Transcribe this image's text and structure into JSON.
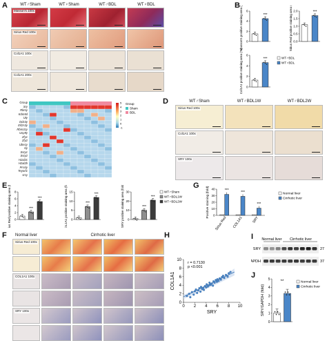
{
  "panels": {
    "A": {
      "letter": "A",
      "columns": [
        "WT♂Sham",
        "WT♀Sham",
        "WT♂BDL",
        "WT♀BDL"
      ],
      "rows": [
        "Masson's 100x",
        "Sirius Red 100x",
        "Col1A1 100x",
        "Col1A1 200x"
      ],
      "colors": {
        "masson": "#c8303a",
        "sirius": "#eec9b3",
        "col": "#efe6dc"
      }
    },
    "B": {
      "letter": "B",
      "legend": [
        "WT♂BDL",
        "WT♀BDL"
      ],
      "sig": "***",
      "plots": [
        {
          "ylabel": "Masson's positive staining area (%)",
          "yticks": [
            "0",
            "2",
            "4",
            "6"
          ],
          "ylim": [
            0,
            6
          ],
          "values": [
            1.5,
            4.5
          ]
        },
        {
          "ylabel": "Sirius Red positive staining area (%)",
          "yticks": [
            "0.0",
            "0.5",
            "1.0",
            "1.5",
            "2.0"
          ],
          "ylim": [
            0,
            2
          ],
          "values": [
            1.1,
            1.7
          ]
        },
        {
          "ylabel": "Col1A1 positive staining area (%)",
          "yticks": [
            "0",
            "2",
            "4",
            "6"
          ],
          "ylim": [
            0,
            6
          ],
          "values": [
            1.3,
            4.6
          ]
        }
      ]
    },
    "C": {
      "letter": "C",
      "group_label": "Group",
      "genes": [
        "Group",
        "Sry",
        "Rbmy",
        "Kdm5d",
        "Uty",
        "Ddx3y",
        "Eif2s3y",
        "Rbm31y",
        "Usp9y",
        "Zfy1",
        "Zfy2",
        "Ube1y",
        "sly",
        "Ssty1",
        "Ssty2",
        "H2al2c",
        "H2al2b",
        "Prssly",
        "Teyorf1",
        "srsy"
      ],
      "legend_title": "Group",
      "legend": [
        "Sham",
        "BDL"
      ],
      "legend_colors": [
        "#3fc7c2",
        "#f08aa0"
      ],
      "scale": [
        "5",
        "4",
        "3",
        "2",
        "1",
        "0",
        "-1"
      ]
    },
    "D": {
      "letter": "D",
      "columns": [
        "WT♂Sham",
        "WT♂BDL1W",
        "WT♂BDL2W"
      ],
      "rows": [
        "Sirius Red 100x",
        "Col1A1 100x",
        "SRY 100x"
      ]
    },
    "E": {
      "letter": "E",
      "legend": [
        "WT♂Sham",
        "WT♂BDL1W",
        "WT♂BDL2W"
      ],
      "legend_colors": [
        "#ffffff",
        "#8f8f8f",
        "#3b3b3b"
      ],
      "sig": "***",
      "plots": [
        {
          "ylabel": "Sirius Red positive staining area (fold)",
          "yticks": [
            "0",
            "2",
            "4",
            "6",
            "8"
          ],
          "ylim": [
            0,
            8
          ],
          "values": [
            1.0,
            2.2,
            5.2
          ]
        },
        {
          "ylabel": "COL1A1 positive staining area (fold)",
          "yticks": [
            "0",
            "5",
            "10",
            "15"
          ],
          "ylim": [
            0,
            15
          ],
          "values": [
            1.0,
            7.0,
            12.0
          ]
        },
        {
          "ylabel": "SRY positive staining area (fold)",
          "yticks": [
            "0",
            "10",
            "20",
            "30"
          ],
          "ylim": [
            0,
            30
          ],
          "values": [
            1.0,
            10.0,
            21.0
          ]
        }
      ]
    },
    "F": {
      "letter": "F",
      "columns": [
        "Normal liver",
        "Cirrhotic liver"
      ],
      "rows": [
        "Sirius Red 100x",
        "COL1A1 100x",
        "SRY 100x"
      ]
    },
    "G": {
      "letter": "G",
      "legend": [
        "Normal liver",
        "Cirrhotic liver"
      ],
      "ylabel": "Positive staining (fold)",
      "yticks": [
        "0",
        "10",
        "20",
        "30",
        "40"
      ],
      "sig": "***"
    },
    "H": {
      "letter": "H",
      "stats": [
        "r = 0.7130",
        "p <0.001"
      ],
      "xlabel": "SRY",
      "ylabel": "COL1A1",
      "xticks": [
        "0",
        "2",
        "4",
        "6",
        "8",
        "10"
      ],
      "yticks": [
        "0",
        "2",
        "4",
        "6",
        "8",
        "10"
      ]
    },
    "I": {
      "letter": "I",
      "groups": [
        "Normal liver",
        "Cirrhotic liver"
      ],
      "bands": [
        {
          "name": "SRY",
          "kda": "27"
        },
        {
          "name": "GAPDH",
          "kda": "37"
        }
      ]
    },
    "J": {
      "letter": "J",
      "ylabel": "SRY/GAPDH (fold)",
      "yticks": [
        "0",
        "1",
        "2",
        "3",
        "4",
        "5"
      ],
      "legend": [
        "Normal liver",
        "Cirrhotic liver"
      ],
      "sig": "**"
    }
  },
  "chart_data": [
    {
      "type": "bar",
      "title": "",
      "categories": [
        "WT♂BDL",
        "WT♀BDL"
      ],
      "values": [
        1.5,
        4.5
      ],
      "ylabel": "Masson's positive staining area (%)",
      "ylim": [
        0,
        6
      ]
    },
    {
      "type": "bar",
      "title": "",
      "categories": [
        "WT♂BDL",
        "WT♀BDL"
      ],
      "values": [
        1.1,
        1.7
      ],
      "ylabel": "Sirius Red positive staining area (%)",
      "ylim": [
        0,
        2
      ]
    },
    {
      "type": "bar",
      "title": "",
      "categories": [
        "WT♂BDL",
        "WT♀BDL"
      ],
      "values": [
        1.3,
        4.6
      ],
      "ylabel": "Col1A1 positive staining area (%)",
      "ylim": [
        0,
        6
      ]
    },
    {
      "type": "bar",
      "title": "",
      "categories": [
        "WT♂Sham",
        "WT♂BDL1W",
        "WT♂BDL2W"
      ],
      "values": [
        1.0,
        2.2,
        5.2
      ],
      "ylabel": "Sirius Red positive staining area (fold)",
      "ylim": [
        0,
        8
      ]
    },
    {
      "type": "bar",
      "title": "",
      "categories": [
        "WT♂Sham",
        "WT♂BDL1W",
        "WT♂BDL2W"
      ],
      "values": [
        1.0,
        7.0,
        12.0
      ],
      "ylabel": "COL1A1 positive staining area (fold)",
      "ylim": [
        0,
        15
      ]
    },
    {
      "type": "bar",
      "title": "",
      "categories": [
        "WT♂Sham",
        "WT♂BDL1W",
        "WT♂BDL2W"
      ],
      "values": [
        1.0,
        10.0,
        21.0
      ],
      "ylabel": "SRY positive staining area (fold)",
      "ylim": [
        0,
        30
      ]
    },
    {
      "type": "bar",
      "title": "",
      "categories": [
        "Sirius Red",
        "COL1A1",
        "SRY"
      ],
      "series": [
        {
          "name": "Normal liver",
          "values": [
            1.0,
            1.0,
            1.0
          ]
        },
        {
          "name": "Cirrhotic liver",
          "values": [
            32.0,
            29.0,
            11.0
          ]
        }
      ],
      "ylabel": "Positive staining (fold)",
      "ylim": [
        0,
        40
      ]
    },
    {
      "type": "scatter",
      "title": "",
      "xlabel": "SRY",
      "ylabel": "COL1A1",
      "xlim": [
        0,
        10
      ],
      "ylim": [
        0,
        10
      ],
      "x": [
        0.6,
        1.0,
        1.2,
        1.5,
        1.8,
        2.0,
        2.2,
        2.4,
        2.6,
        2.8,
        3.0,
        3.1,
        3.3,
        3.5,
        3.6,
        3.8,
        4.0,
        4.1,
        4.3,
        4.5,
        4.6,
        4.8,
        5.0,
        5.2,
        5.3,
        5.5,
        5.7,
        5.9,
        6.0,
        6.2,
        6.4,
        6.6,
        6.8,
        7.0,
        7.2,
        7.5,
        7.8,
        8.0,
        8.3
      ],
      "y": [
        1.5,
        2.0,
        1.2,
        2.4,
        1.8,
        2.6,
        3.0,
        2.2,
        2.8,
        3.3,
        2.5,
        3.6,
        3.1,
        3.4,
        2.9,
        3.8,
        3.5,
        4.2,
        3.7,
        4.0,
        4.6,
        4.1,
        4.4,
        3.9,
        4.9,
        4.6,
        5.2,
        4.8,
        5.4,
        5.0,
        5.6,
        5.3,
        5.9,
        6.2,
        5.7,
        6.4,
        6.0,
        6.8,
        7.1
      ]
    },
    {
      "type": "bar",
      "title": "",
      "categories": [
        "Normal liver",
        "Cirrhotic liver"
      ],
      "values": [
        1.0,
        3.3
      ],
      "ylabel": "SRY/GAPDH (fold)",
      "ylim": [
        0,
        5
      ]
    }
  ]
}
